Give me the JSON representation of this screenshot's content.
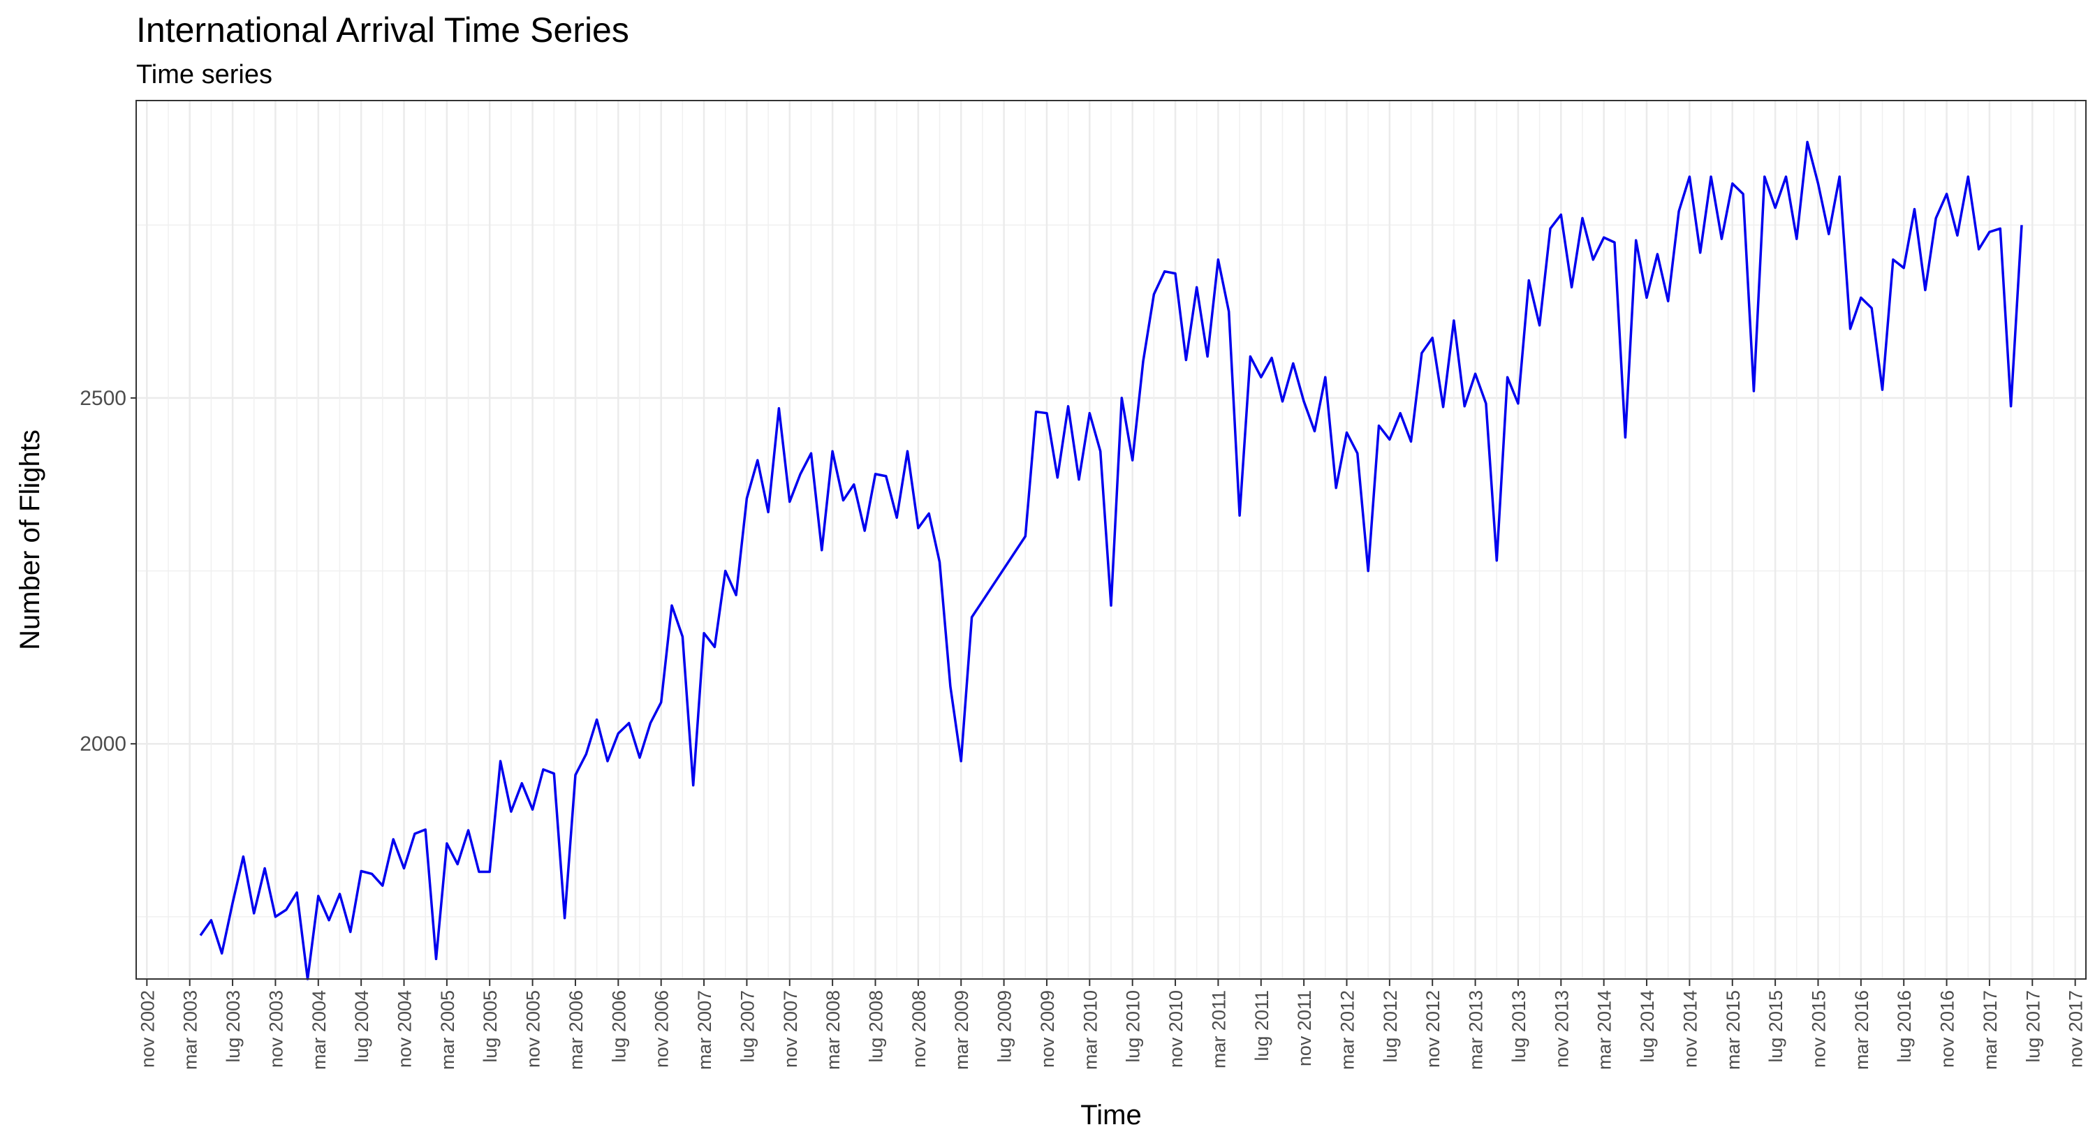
{
  "chart_data": {
    "type": "line",
    "title": "International Arrival Time Series",
    "subtitle": "Time series",
    "xlabel": "Time",
    "ylabel": "Number of Flights",
    "line_color": "#0000EE",
    "grid": true,
    "legend": "none",
    "ylim": [
      1660,
      2930
    ],
    "y_ticks": [
      2000,
      2500
    ],
    "x_range": [
      "2002-10",
      "2017-12"
    ],
    "x_ticks": [
      "nov 2002",
      "mar 2003",
      "lug 2003",
      "nov 2003",
      "mar 2004",
      "lug 2004",
      "nov 2004",
      "mar 2005",
      "lug 2005",
      "nov 2005",
      "mar 2006",
      "lug 2006",
      "nov 2006",
      "mar 2007",
      "lug 2007",
      "nov 2007",
      "mar 2008",
      "lug 2008",
      "nov 2008",
      "mar 2009",
      "lug 2009",
      "nov 2009",
      "mar 2010",
      "lug 2010",
      "nov 2010",
      "mar 2011",
      "lug 2011",
      "nov 2011",
      "mar 2012",
      "lug 2012",
      "nov 2012",
      "mar 2013",
      "lug 2013",
      "nov 2013",
      "mar 2014",
      "lug 2014",
      "nov 2014",
      "mar 2015",
      "lug 2015",
      "nov 2015",
      "mar 2016",
      "lug 2016",
      "nov 2016",
      "mar 2017",
      "lug 2017",
      "nov 2017"
    ],
    "series": [
      {
        "start": "2003-04",
        "values": [
          1723,
          1745,
          1697,
          1770,
          1837,
          1755,
          1820,
          1750,
          1760,
          1785,
          1660,
          1780,
          1745,
          1783,
          1728,
          1816,
          1812,
          1795,
          1862,
          1820,
          1870,
          1876,
          1689,
          1856,
          1826,
          1875,
          1815,
          1815,
          1975,
          1902,
          1943,
          1905,
          1963,
          1957,
          1748,
          1955,
          1985,
          2035,
          1975,
          2015,
          2030,
          1980,
          2030,
          2060,
          2200,
          2155,
          1940,
          2160,
          2140,
          2250,
          2215,
          2355,
          2410,
          2335,
          2485,
          2350,
          2390,
          2420,
          2280,
          2423,
          2352,
          2375,
          2308,
          2390,
          2387,
          2327,
          2423,
          2312,
          2333,
          2263,
          2083,
          1975,
          2183,
          null,
          null,
          null,
          null,
          2300,
          2480,
          2478,
          2385,
          2488,
          2382,
          2478,
          2423,
          2200,
          2500,
          2410,
          2553,
          2650,
          2683,
          2680,
          2555,
          2660,
          2560,
          2700,
          2625,
          2330,
          2560,
          2530,
          2558,
          2495,
          2550,
          2495,
          2452,
          2530,
          2370,
          2450,
          2420,
          2250,
          2460,
          2440,
          2478,
          2437,
          2565,
          2587,
          2487,
          2612,
          2488,
          2535,
          2492,
          2265,
          2530,
          2492,
          2670,
          2605,
          2745,
          2765,
          2660,
          2760,
          2700,
          2732,
          2725,
          2443,
          2728,
          2645,
          2708,
          2640,
          2770,
          2820,
          2710,
          2820,
          2730,
          2810,
          2795,
          2510,
          2820,
          2775,
          2820,
          2730,
          2870,
          2810,
          2737,
          2820,
          2600,
          2645,
          2630,
          2512,
          2700,
          2688,
          2773,
          2656,
          2760,
          2795,
          2735,
          2820,
          2715,
          2740,
          2745,
          2488,
          2750
        ]
      }
    ]
  }
}
